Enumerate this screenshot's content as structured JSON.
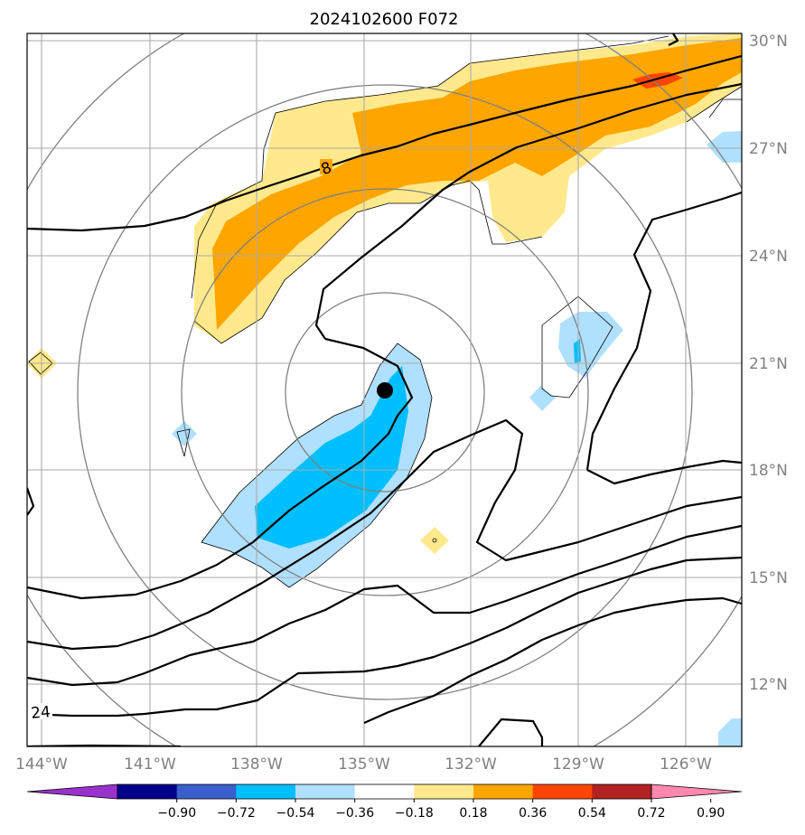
{
  "title": "2024102600 F072",
  "map": {
    "lat_labels": [
      "30°N",
      "27°N",
      "24°N",
      "21°N",
      "18°N",
      "15°N",
      "12°N"
    ],
    "lon_labels": [
      "144°W",
      "141°W",
      "138°W",
      "135°W",
      "132°W",
      "129°W",
      "126°W"
    ],
    "contour_labels": [
      "8",
      "24"
    ],
    "storm_center": {
      "lon": -134.8,
      "lat": 20.3
    }
  },
  "colorbar": {
    "ticks": [
      "−0.90",
      "−0.72",
      "−0.54",
      "−0.36",
      "−0.18",
      "0.18",
      "0.36",
      "0.54",
      "0.72",
      "0.90"
    ],
    "colors": [
      "#9932cc",
      "#00008b",
      "#3a5fcd",
      "#00bfff",
      "#b0e0ff",
      "#ffffff",
      "#ffe98c",
      "#ffa500",
      "#ff4500",
      "#b22222",
      "#ff88b0"
    ]
  }
}
